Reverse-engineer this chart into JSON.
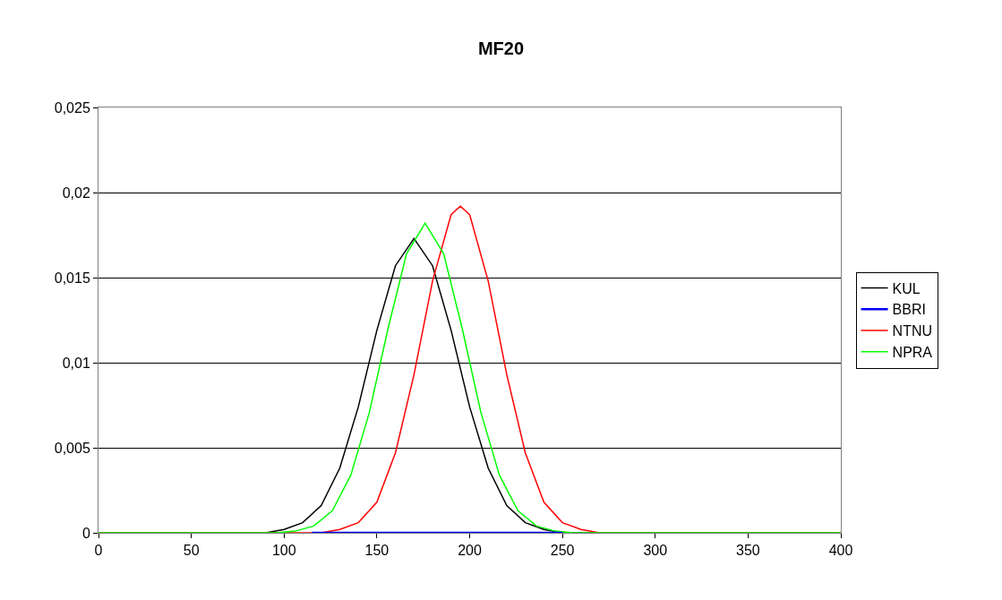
{
  "chart_data": {
    "type": "line",
    "title": "MF20",
    "series": [
      {
        "name": "KUL",
        "color": "#000000",
        "x": [
          0,
          80,
          90,
          100,
          110,
          120,
          130,
          140,
          150,
          160,
          170,
          180,
          190,
          200,
          210,
          220,
          230,
          240,
          250,
          260,
          400
        ],
        "values": [
          0,
          0,
          0,
          0.0002,
          0.0006,
          0.0016,
          0.0038,
          0.0074,
          0.0119,
          0.0157,
          0.0173,
          0.0157,
          0.0119,
          0.0074,
          0.0038,
          0.0016,
          0.0006,
          0.0002,
          0,
          0,
          0
        ]
      },
      {
        "name": "BBRI",
        "color": "#0000ff",
        "x": [
          115,
          250
        ],
        "values": [
          0,
          0
        ]
      },
      {
        "name": "NTNU",
        "color": "#ff0000",
        "x": [
          0,
          110,
          120,
          130,
          140,
          150,
          160,
          170,
          180,
          190,
          195,
          200,
          210,
          220,
          230,
          240,
          250,
          260,
          270,
          280,
          400
        ],
        "values": [
          0,
          0,
          0,
          0.0002,
          0.0006,
          0.0018,
          0.0047,
          0.0093,
          0.0148,
          0.0187,
          0.0192,
          0.0187,
          0.0148,
          0.0093,
          0.0047,
          0.0018,
          0.0006,
          0.0002,
          0,
          0,
          0
        ]
      },
      {
        "name": "NPRA",
        "color": "#00ff00",
        "x": [
          0,
          96,
          106,
          116,
          126,
          136,
          146,
          156,
          166,
          176,
          186,
          196,
          206,
          216,
          226,
          236,
          246,
          256,
          400
        ],
        "values": [
          0,
          0,
          0.0001,
          0.0004,
          0.0013,
          0.0034,
          0.0071,
          0.012,
          0.0164,
          0.0182,
          0.0164,
          0.012,
          0.0071,
          0.0034,
          0.0013,
          0.0004,
          0.0001,
          0,
          0
        ]
      }
    ],
    "xlim": [
      0,
      400
    ],
    "xticks": [
      0,
      50,
      100,
      150,
      200,
      250,
      300,
      350,
      400
    ],
    "ylim": [
      0,
      0.025
    ],
    "yticks": [
      {
        "value": 0,
        "label": "0"
      },
      {
        "value": 0.005,
        "label": "0,005"
      },
      {
        "value": 0.01,
        "label": "0,01"
      },
      {
        "value": 0.015,
        "label": "0,015"
      },
      {
        "value": 0.02,
        "label": "0,02"
      },
      {
        "value": 0.025,
        "label": "0,025"
      }
    ],
    "grid": "y",
    "legend": "right",
    "marker": "none",
    "line_style": "solid"
  }
}
